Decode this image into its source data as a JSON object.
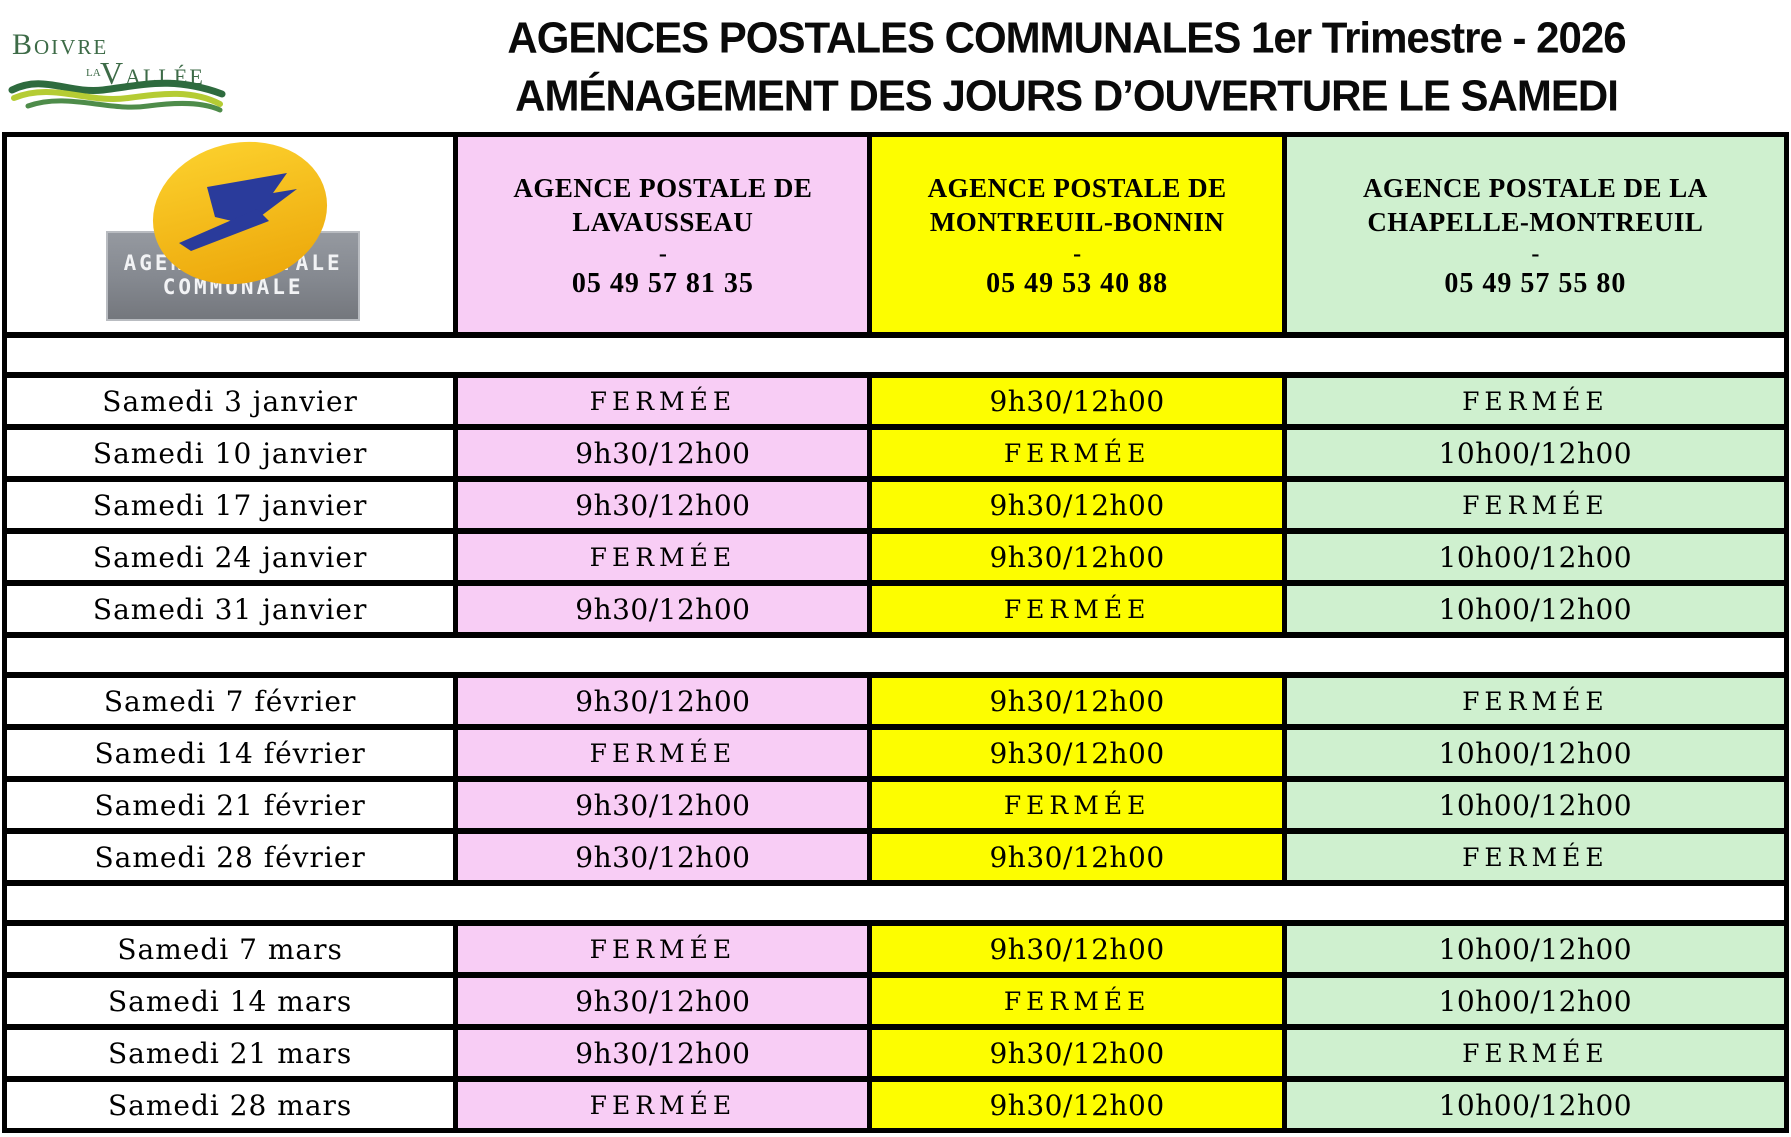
{
  "colors": {
    "pink": "#F8CDF5",
    "yellow": "#FDFD00",
    "green": "#CFF0CF",
    "border": "#000000",
    "title_text": "#0a0a0a",
    "muni_green_dark": "#3d6b47",
    "muni_green_wave": "#4e8c4a",
    "muni_green_light": "#b5cc34",
    "laposte_yellow": "#F7C31C",
    "laposte_blue": "#2A3B9B",
    "laposte_gray": "#84888f"
  },
  "municipality_logo": {
    "word1": "Boivre",
    "word2": "la",
    "word3": "Vallée"
  },
  "header": {
    "title_line1": "AGENCES POSTALES COMMUNALES 1er Trimestre - 2026",
    "title_line2": "AMÉNAGEMENT DES JOURS D’OUVERTURE LE SAMEDI"
  },
  "table": {
    "corner_logo": {
      "line1": "AGENCE POSTALE",
      "line2": "COMMUNALE"
    },
    "closed_label": "FERMÉE",
    "columns": [
      {
        "title_line1": "AGENCE POSTALE  DE",
        "title_line2": "LAVAUSSEAU",
        "separator": "-",
        "phone": "05 49 57 81 35"
      },
      {
        "title_line1": "AGENCE POSTALE  DE",
        "title_line2": "MONTREUIL-BONNIN",
        "separator": "-",
        "phone": "05 49 53 40 88"
      },
      {
        "title_line1": "AGENCE POSTALE DE LA",
        "title_line2": "CHAPELLE-MONTREUIL",
        "separator": "-",
        "phone": "05 49 57 55 80"
      }
    ],
    "sections": [
      {
        "month": "janvier",
        "rows": [
          {
            "date": "Samedi 3 janvier",
            "values": [
              "FERMÉE",
              "9h30/12h00",
              "FERMÉE"
            ]
          },
          {
            "date": "Samedi 10 janvier",
            "values": [
              "9h30/12h00",
              "FERMÉE",
              "10h00/12h00"
            ]
          },
          {
            "date": "Samedi 17 janvier",
            "values": [
              "9h30/12h00",
              "9h30/12h00",
              "FERMÉE"
            ]
          },
          {
            "date": "Samedi 24 janvier",
            "values": [
              "FERMÉE",
              "9h30/12h00",
              "10h00/12h00"
            ]
          },
          {
            "date": "Samedi 31 janvier",
            "values": [
              "9h30/12h00",
              "FERMÉE",
              "10h00/12h00"
            ]
          }
        ]
      },
      {
        "month": "février",
        "rows": [
          {
            "date": "Samedi 7 février",
            "values": [
              "9h30/12h00",
              "9h30/12h00",
              "FERMÉE"
            ]
          },
          {
            "date": "Samedi 14 février",
            "values": [
              "FERMÉE",
              "9h30/12h00",
              "10h00/12h00"
            ]
          },
          {
            "date": "Samedi 21 février",
            "values": [
              "9h30/12h00",
              "FERMÉE",
              "10h00/12h00"
            ]
          },
          {
            "date": "Samedi 28 février",
            "values": [
              "9h30/12h00",
              "9h30/12h00",
              "FERMÉE"
            ]
          }
        ]
      },
      {
        "month": "mars",
        "rows": [
          {
            "date": "Samedi 7 mars",
            "values": [
              "FERMÉE",
              "9h30/12h00",
              "10h00/12h00"
            ]
          },
          {
            "date": "Samedi 14 mars",
            "values": [
              "9h30/12h00",
              "FERMÉE",
              "10h00/12h00"
            ]
          },
          {
            "date": "Samedi 21 mars",
            "values": [
              "9h30/12h00",
              "9h30/12h00",
              "FERMÉE"
            ]
          },
          {
            "date": "Samedi 28 mars",
            "values": [
              "FERMÉE",
              "9h30/12h00",
              "10h00/12h00"
            ]
          }
        ]
      }
    ]
  }
}
